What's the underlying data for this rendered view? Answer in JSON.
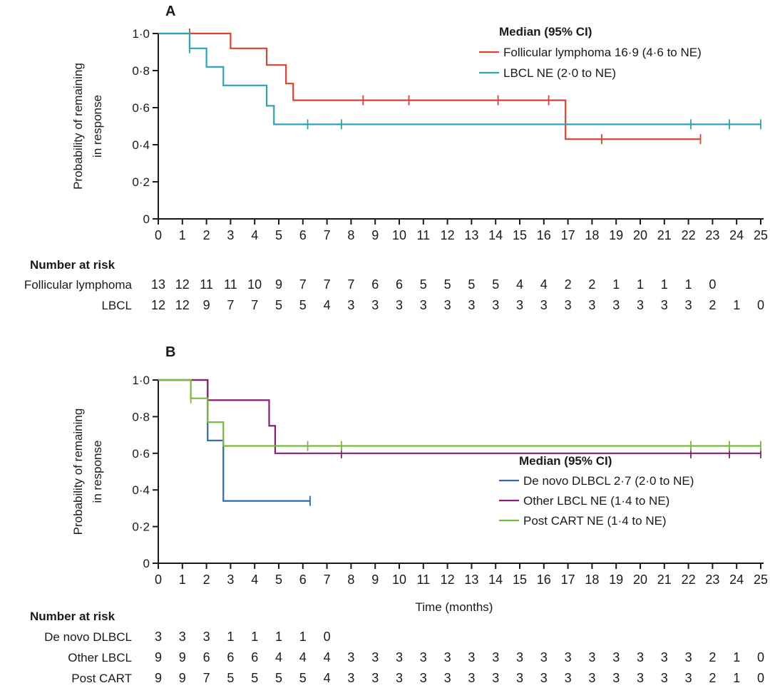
{
  "chart_data": [
    {
      "panel": "A",
      "type": "line",
      "step": true,
      "ylabel": "Probability of remaining in response",
      "xlim": [
        0,
        25
      ],
      "ylim": [
        0,
        1
      ],
      "xticks": [
        "0",
        "1",
        "2",
        "3",
        "4",
        "5",
        "6",
        "7",
        "8",
        "9",
        "10",
        "11",
        "12",
        "13",
        "14",
        "15",
        "16",
        "17",
        "18",
        "19",
        "20",
        "21",
        "22",
        "23",
        "24",
        "25"
      ],
      "yticks": [
        "0",
        "0·2",
        "0·4",
        "0·6",
        "0·8",
        "1·0"
      ],
      "legend": {
        "title": "Median (95% CI)",
        "placement": "top-right"
      },
      "series": [
        {
          "name": "Follicular lymphoma 16·9 (4·6 to NE)",
          "color": "#d9432f",
          "steps": [
            [
              0,
              1.0
            ],
            [
              3.0,
              0.92
            ],
            [
              4.5,
              0.83
            ],
            [
              5.3,
              0.73
            ],
            [
              5.6,
              0.64
            ],
            [
              16.9,
              0.43
            ],
            [
              22.5,
              0.43
            ]
          ],
          "censored": [
            1.3,
            8.5,
            10.4,
            14.1,
            16.2,
            18.4,
            22.5
          ]
        },
        {
          "name": "LBCL  NE (2·0 to NE)",
          "color": "#2aa5b8",
          "steps": [
            [
              0,
              1.0
            ],
            [
              1.3,
              0.92
            ],
            [
              2.0,
              0.82
            ],
            [
              2.7,
              0.72
            ],
            [
              4.5,
              0.61
            ],
            [
              4.8,
              0.51
            ],
            [
              25,
              0.51
            ]
          ],
          "censored": [
            1.3,
            6.2,
            7.6,
            22.1,
            23.7,
            25
          ]
        }
      ],
      "risk_table": {
        "title": "Number at risk",
        "rows": [
          {
            "label": "Follicular lymphoma",
            "values": [
              "13",
              "12",
              "11",
              "11",
              "10",
              "9",
              "7",
              "7",
              "7",
              "6",
              "6",
              "5",
              "5",
              "5",
              "5",
              "4",
              "4",
              "2",
              "2",
              "1",
              "1",
              "1",
              "1",
              "0"
            ]
          },
          {
            "label": "LBCL",
            "values": [
              "12",
              "12",
              "9",
              "7",
              "7",
              "5",
              "5",
              "4",
              "3",
              "3",
              "3",
              "3",
              "3",
              "3",
              "3",
              "3",
              "3",
              "3",
              "3",
              "3",
              "3",
              "3",
              "3",
              "2",
              "1",
              "0"
            ]
          }
        ]
      }
    },
    {
      "panel": "B",
      "type": "line",
      "step": true,
      "ylabel": "Probability of remaining in response",
      "xlabel": "Time (months)",
      "xlim": [
        0,
        25
      ],
      "ylim": [
        0,
        1
      ],
      "xticks": [
        "0",
        "1",
        "2",
        "3",
        "4",
        "5",
        "6",
        "7",
        "8",
        "9",
        "10",
        "11",
        "12",
        "13",
        "14",
        "15",
        "16",
        "17",
        "18",
        "19",
        "20",
        "21",
        "22",
        "23",
        "24",
        "25"
      ],
      "yticks": [
        "0",
        "0·2",
        "0·4",
        "0·6",
        "0·8",
        "1·0"
      ],
      "legend": {
        "title": "Median (95% CI)",
        "placement": "bottom-right"
      },
      "series": [
        {
          "name": "De novo DLBCL 2·7 (2·0 to NE)",
          "color": "#2a6aa8",
          "steps": [
            [
              0,
              1.0
            ],
            [
              2.05,
              0.67
            ],
            [
              2.7,
              0.34
            ],
            [
              6.3,
              0.34
            ]
          ],
          "censored": [
            6.3
          ]
        },
        {
          "name": "Other LBCL  NE (1·4 to NE)",
          "color": "#8b1f72",
          "steps": [
            [
              0,
              1.0
            ],
            [
              2.05,
              0.89
            ],
            [
              4.6,
              0.75
            ],
            [
              4.85,
              0.6
            ],
            [
              25,
              0.6
            ]
          ],
          "censored": [
            7.6,
            22.1,
            23.7,
            25
          ]
        },
        {
          "name": "Post CART NE (1·4 to NE)",
          "color": "#7ab83e",
          "steps": [
            [
              0,
              1.0
            ],
            [
              1.35,
              0.9
            ],
            [
              2.05,
              0.77
            ],
            [
              2.7,
              0.64
            ],
            [
              25,
              0.64
            ]
          ],
          "censored": [
            1.35,
            6.2,
            7.6,
            22.1,
            23.7,
            25
          ]
        }
      ],
      "risk_table": {
        "title": "Number at risk",
        "rows": [
          {
            "label": "De novo DLBCL",
            "values": [
              "3",
              "3",
              "3",
              "1",
              "1",
              "1",
              "1",
              "0"
            ]
          },
          {
            "label": "Other LBCL",
            "values": [
              "9",
              "9",
              "6",
              "6",
              "6",
              "4",
              "4",
              "4",
              "3",
              "3",
              "3",
              "3",
              "3",
              "3",
              "3",
              "3",
              "3",
              "3",
              "3",
              "3",
              "3",
              "3",
              "3",
              "2",
              "1",
              "0"
            ]
          },
          {
            "label": "Post CART",
            "values": [
              "9",
              "9",
              "7",
              "5",
              "5",
              "5",
              "5",
              "4",
              "3",
              "3",
              "3",
              "3",
              "3",
              "3",
              "3",
              "3",
              "3",
              "3",
              "3",
              "3",
              "3",
              "3",
              "3",
              "2",
              "1",
              "0"
            ]
          }
        ]
      }
    }
  ]
}
